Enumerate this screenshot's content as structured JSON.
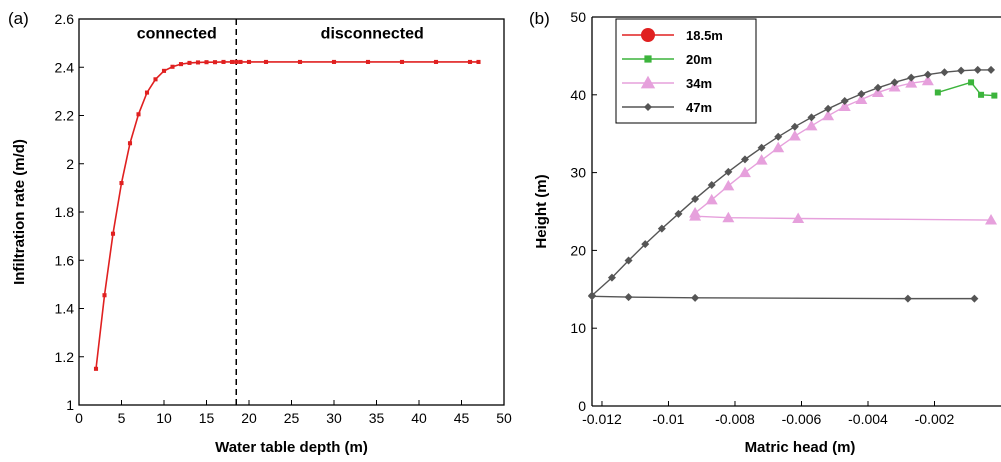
{
  "chart_data": [
    {
      "panel_label": "(a)",
      "type": "line",
      "xlabel": "Water table depth (m)",
      "ylabel": "Infiltration rate (m/d)",
      "xlim": [
        0,
        50
      ],
      "ylim": [
        1,
        2.6
      ],
      "xticks": [
        "0",
        "5",
        "10",
        "15",
        "20",
        "25",
        "30",
        "35",
        "40",
        "45",
        "50"
      ],
      "yticks": [
        "1",
        "1.2",
        "1.4",
        "1.6",
        "1.8",
        "2",
        "2.2",
        "2.4",
        "2.6"
      ],
      "annotations": [
        {
          "text": "connected",
          "x": 11.5,
          "y": 2.54
        },
        {
          "text": "disconnected",
          "x": 34.5,
          "y": 2.54
        }
      ],
      "vline": {
        "x": 18.5,
        "style": "dashed"
      },
      "series": [
        {
          "color": "#e02020",
          "marker": "square",
          "x": [
            2,
            3,
            4,
            5,
            6,
            7,
            8,
            9,
            10,
            11,
            12,
            13,
            14,
            15,
            16,
            17,
            18,
            18.5,
            19,
            20,
            22,
            26,
            30,
            34,
            38,
            42,
            46,
            47
          ],
          "y": [
            1.15,
            1.455,
            1.71,
            1.92,
            2.085,
            2.205,
            2.295,
            2.35,
            2.385,
            2.402,
            2.413,
            2.418,
            2.42,
            2.421,
            2.421,
            2.422,
            2.422,
            2.422,
            2.422,
            2.422,
            2.422,
            2.422,
            2.422,
            2.422,
            2.422,
            2.422,
            2.422,
            2.422
          ]
        }
      ]
    },
    {
      "panel_label": "(b)",
      "type": "line",
      "xlabel": "Matric head (m)",
      "ylabel": "Height (m)",
      "xlim": [
        -0.0123,
        0
      ],
      "ylim": [
        0,
        50
      ],
      "xticks": [
        "-0.012",
        "-0.01",
        "-0.008",
        "-0.006",
        "-0.004",
        "-0.002"
      ],
      "xtick_values": [
        -0.012,
        -0.01,
        -0.008,
        -0.006,
        -0.004,
        -0.002
      ],
      "yticks": [
        "0",
        "10",
        "20",
        "30",
        "40",
        "50"
      ],
      "legend_position": "top-left",
      "series": [
        {
          "name": "18.5m",
          "color": "#e02020",
          "marker": "circle",
          "x": [],
          "y": []
        },
        {
          "name": "20m",
          "color": "#3cb43c",
          "marker": "square",
          "x": [
            -0.0019,
            -0.0009,
            -0.0006,
            -0.0002
          ],
          "y": [
            40.3,
            41.6,
            40.0,
            39.9
          ]
        },
        {
          "name": "34m",
          "color": "#e6a0dc",
          "marker": "triangle",
          "x": [
            -0.0092,
            -0.0087,
            -0.0082,
            -0.0077,
            -0.0072,
            -0.0067,
            -0.0062,
            -0.0057,
            -0.0052,
            -0.0047,
            -0.0042,
            -0.0037,
            -0.0032,
            -0.0027,
            -0.0022,
            -0.0092,
            -0.0082,
            -0.0061,
            -0.0003
          ],
          "y": [
            24.8,
            26.5,
            28.3,
            30.0,
            31.6,
            33.2,
            34.7,
            36.0,
            37.3,
            38.5,
            39.4,
            40.3,
            41.0,
            41.5,
            41.8,
            24.4,
            24.2,
            24.1,
            23.9
          ]
        },
        {
          "name": "47m",
          "color": "#555555",
          "marker": "diamond",
          "x": [
            -0.0123,
            -0.0117,
            -0.0112,
            -0.0107,
            -0.0102,
            -0.0097,
            -0.0092,
            -0.0087,
            -0.0082,
            -0.0077,
            -0.0072,
            -0.0067,
            -0.0062,
            -0.0057,
            -0.0052,
            -0.0047,
            -0.0042,
            -0.0037,
            -0.0032,
            -0.0027,
            -0.0022,
            -0.0017,
            -0.0012,
            -0.0007,
            -0.0003,
            -0.0123,
            -0.0112,
            -0.0092,
            -0.0028,
            -0.0008
          ],
          "y": [
            14.2,
            16.5,
            18.7,
            20.8,
            22.8,
            24.7,
            26.6,
            28.4,
            30.1,
            31.7,
            33.2,
            34.6,
            35.9,
            37.1,
            38.2,
            39.2,
            40.1,
            40.9,
            41.6,
            42.2,
            42.6,
            42.9,
            43.1,
            43.2,
            43.2,
            14.1,
            14.0,
            13.9,
            13.8,
            13.8
          ]
        }
      ]
    }
  ]
}
